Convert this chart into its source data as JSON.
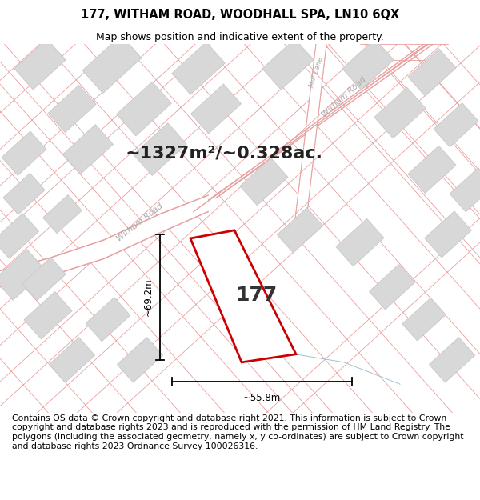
{
  "title": "177, WITHAM ROAD, WOODHALL SPA, LN10 6QX",
  "subtitle": "Map shows position and indicative extent of the property.",
  "area_text": "~1327m²/~0.328ac.",
  "property_number": "177",
  "dim_horizontal": "~55.8m",
  "dim_vertical": "~69.2m",
  "footer": "Contains OS data © Crown copyright and database right 2021. This information is subject to Crown copyright and database rights 2023 and is reproduced with the permission of HM Land Registry. The polygons (including the associated geometry, namely x, y co-ordinates) are subject to Crown copyright and database rights 2023 Ordnance Survey 100026316.",
  "bg_color": "#ffffff",
  "map_bg": "#ffffff",
  "road_line_color": "#e8a0a0",
  "plot_color": "#cc0000",
  "building_fill": "#d8d8d8",
  "building_edge": "#c8c8c8",
  "title_fontsize": 10.5,
  "subtitle_fontsize": 9,
  "footer_fontsize": 7.8,
  "road_label_color": "#aaaaaa",
  "dim_line_color": "#000000"
}
